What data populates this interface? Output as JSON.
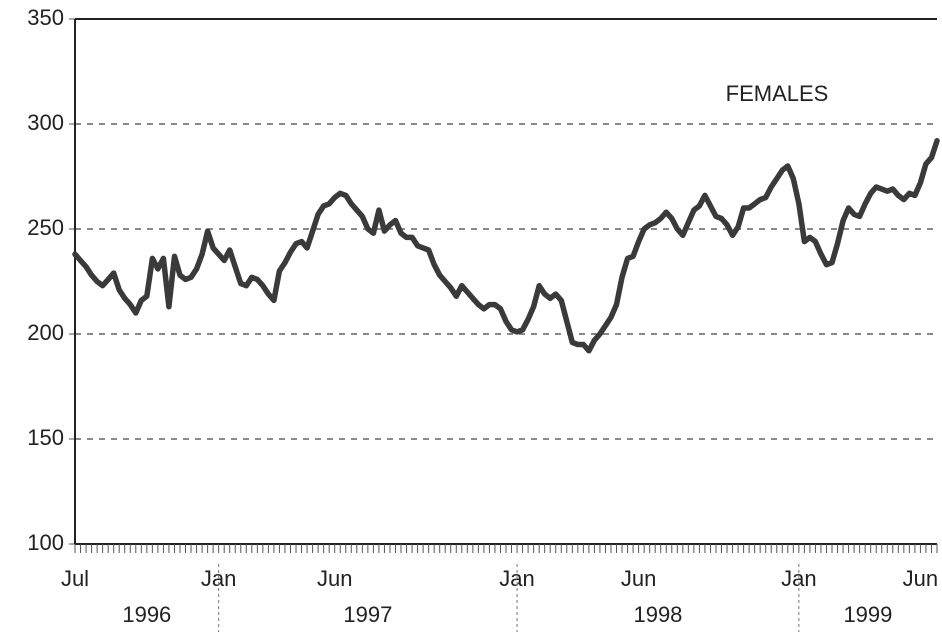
{
  "chart_data": {
    "type": "line",
    "annotation": "FEMALES",
    "categories": [
      "Jul",
      null,
      null,
      null,
      null,
      null,
      null,
      null,
      null,
      null,
      null,
      null,
      null,
      null,
      null,
      null,
      null,
      null,
      null,
      null,
      null,
      null,
      null,
      null,
      null,
      null,
      "Jan",
      null,
      null,
      null,
      null,
      null,
      null,
      null,
      null,
      null,
      null,
      null,
      null,
      null,
      null,
      null,
      null,
      null,
      null,
      null,
      null,
      "Jun",
      null,
      null,
      null,
      null,
      null,
      null,
      null,
      null,
      null,
      null,
      null,
      null,
      null,
      null,
      null,
      null,
      null,
      null,
      null,
      null,
      null,
      null,
      null,
      null,
      null,
      null,
      null,
      null,
      null,
      null,
      null,
      null,
      "Jan",
      null,
      null,
      null,
      null,
      null,
      null,
      null,
      null,
      null,
      null,
      null,
      null,
      null,
      null,
      null,
      null,
      null,
      null,
      null,
      null,
      null,
      "Jun",
      null,
      null,
      null,
      null,
      null,
      null,
      null,
      null,
      null,
      null,
      null,
      null,
      null,
      null,
      null,
      null,
      null,
      null,
      null,
      null,
      null,
      null,
      null,
      null,
      null,
      null,
      null,
      null,
      "Jan",
      null,
      null,
      null,
      null,
      null,
      null,
      null,
      null,
      null,
      null,
      null,
      null,
      null,
      null,
      null,
      null,
      null,
      null,
      null,
      null,
      null,
      "Jun",
      null,
      null,
      null
    ],
    "years": [
      "1996",
      "1997",
      "1998",
      "1999"
    ],
    "series": [
      {
        "name": "FEMALES",
        "color": "#3a3a3a",
        "values": [
          238,
          235,
          232,
          228,
          225,
          223,
          226,
          229,
          221,
          217,
          214,
          210,
          216,
          218,
          236,
          231,
          236,
          213,
          237,
          228,
          226,
          227,
          231,
          238,
          249,
          241,
          238,
          235,
          240,
          232,
          224,
          223,
          227,
          226,
          223,
          219,
          216,
          230,
          234,
          239,
          243,
          244,
          241,
          249,
          257,
          261,
          262,
          265,
          267,
          266,
          262,
          259,
          256,
          250,
          248,
          259,
          249,
          252,
          254,
          248,
          246,
          246,
          242,
          241,
          240,
          233,
          228,
          225,
          222,
          218,
          223,
          220,
          217,
          214,
          212,
          214,
          214,
          212,
          206,
          202,
          201,
          202,
          207,
          213,
          223,
          219,
          217,
          219,
          216,
          206,
          196,
          195,
          195,
          192,
          197,
          200,
          204,
          208,
          214,
          227,
          236,
          237,
          244,
          250,
          252,
          253,
          255,
          258,
          255,
          250,
          247,
          253,
          259,
          261,
          266,
          261,
          256,
          255,
          252,
          247,
          251,
          260,
          260,
          262,
          264,
          265,
          270,
          274,
          278,
          280,
          274,
          262,
          244,
          246,
          244,
          238,
          233,
          234,
          243,
          254,
          260,
          257,
          256,
          262,
          267,
          270,
          269,
          268,
          269,
          266,
          264,
          267,
          266,
          272,
          281,
          284,
          292
        ]
      }
    ],
    "ylim": [
      100,
      350
    ],
    "yticks": [
      100,
      150,
      200,
      250,
      300,
      350
    ],
    "grid": true
  }
}
